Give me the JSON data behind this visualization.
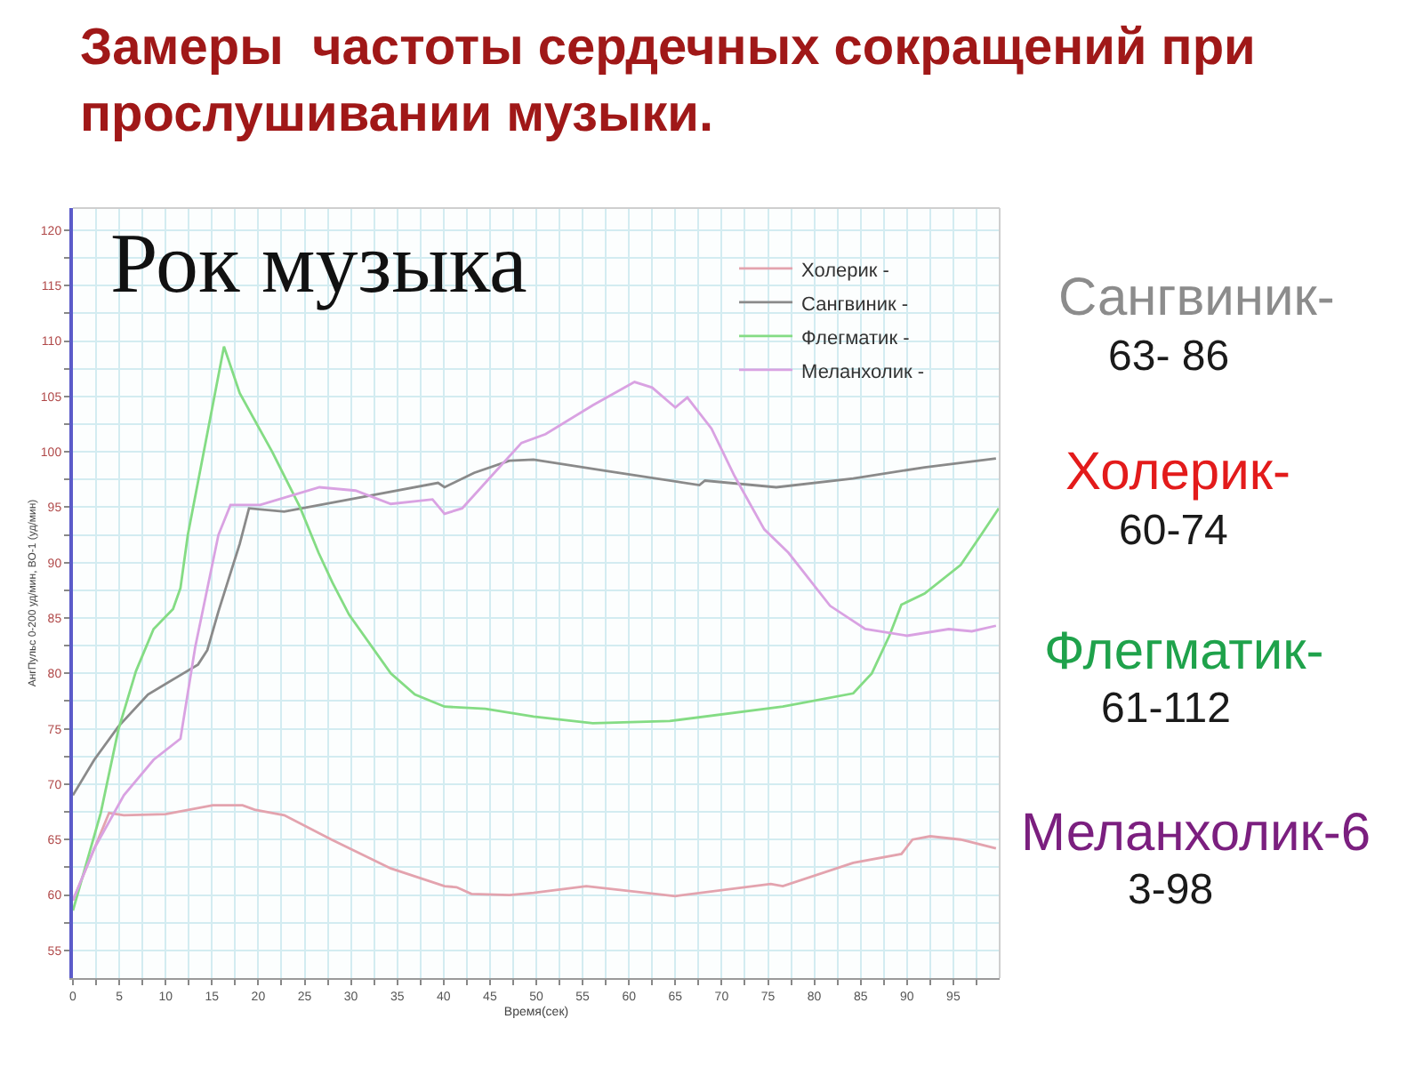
{
  "chart_data": {
    "type": "line",
    "title": "Замеры  частоты сердечных сокращений при прослушивании музыки.",
    "xlabel": "Время(сек)",
    "ylabel": "АнгПульс 0-200 уд/мин, ВО-1 (уд/мин)",
    "xlim": [
      0,
      100
    ],
    "ylim": [
      52.5,
      122
    ],
    "xticks": [
      0,
      {
        "value": 2.5,
        "label": null
      },
      5,
      {
        "value": 7.5,
        "label": null
      },
      10,
      {
        "value": 12.5,
        "label": null
      },
      15,
      {
        "value": 17.5,
        "label": null
      },
      20,
      {
        "value": 22.5,
        "label": null
      },
      25,
      {
        "value": 27.5,
        "label": null
      },
      30,
      {
        "value": 32.5,
        "label": null
      },
      35,
      {
        "value": 37.5,
        "label": null
      },
      40,
      {
        "value": 42.5,
        "label": null
      },
      45,
      {
        "value": 47.5,
        "label": null
      },
      50,
      {
        "value": 52.5,
        "label": null
      },
      55,
      {
        "value": 57.5,
        "label": null
      },
      60,
      {
        "value": 62.5,
        "label": null
      },
      65,
      {
        "value": 67.5,
        "label": null
      },
      70,
      {
        "value": 72.5,
        "label": null
      },
      75,
      {
        "value": 77.5,
        "label": null
      },
      80,
      {
        "value": 82.5,
        "label": null
      },
      85,
      {
        "value": 87.5,
        "label": null
      },
      90,
      {
        "value": 92.5,
        "label": null
      },
      95,
      {
        "value": 97.5,
        "label": null
      }
    ],
    "yticks": [
      55,
      {
        "value": 57.5,
        "label": null
      },
      60,
      {
        "value": 62.5,
        "label": null
      },
      65,
      {
        "value": 67.5,
        "label": null
      },
      70,
      {
        "value": 72.5,
        "label": null
      },
      75,
      {
        "value": 77.5,
        "label": null
      },
      80,
      {
        "value": 82.5,
        "label": null
      },
      85,
      {
        "value": 87.5,
        "label": null
      },
      90,
      {
        "value": 92.5,
        "label": null
      },
      95,
      {
        "value": 97.5,
        "label": null
      },
      100,
      {
        "value": 102.5,
        "label": null
      },
      105,
      {
        "value": 107.5,
        "label": null
      },
      110,
      {
        "value": 112.5,
        "label": null
      },
      115,
      {
        "value": 117.5,
        "label": null
      },
      120
    ],
    "grid": true,
    "legend": "top right",
    "series": [
      {
        "name": "Холерик -",
        "color": "#e3a3ae",
        "x": [
          0,
          3.9,
          5.5,
          10,
          15.1,
          18.3,
          19.6,
          22.8,
          27.9,
          34.3,
          40.1,
          41.4,
          43,
          47.1,
          49.7,
          55.4,
          65,
          75.3,
          76.6,
          84.2,
          89.4,
          90.6,
          92.5,
          95.8,
          99.6
        ],
        "values": [
          59.5,
          67.4,
          67.2,
          67.3,
          68.1,
          68.1,
          67.7,
          67.2,
          65.0,
          62.4,
          60.8,
          60.7,
          60.1,
          60.0,
          60.2,
          60.8,
          59.9,
          61.0,
          60.8,
          62.9,
          63.7,
          65.0,
          65.3,
          65.0,
          64.2
        ]
      },
      {
        "name": "Сангвиник -",
        "color": "#8a8a8a",
        "x": [
          0,
          2.3,
          4.9,
          8.1,
          11.3,
          13.5,
          14.5,
          15.7,
          18,
          19,
          22.8,
          31.8,
          39.4,
          40.1,
          43.3,
          47.1,
          49.7,
          57.4,
          67.6,
          68.2,
          75.9,
          84.2,
          91.9,
          99.6
        ],
        "values": [
          69.0,
          72.2,
          75.2,
          78.1,
          79.7,
          80.8,
          82.1,
          85.6,
          91.7,
          94.9,
          94.6,
          96.0,
          97.2,
          96.8,
          98.1,
          99.2,
          99.3,
          98.3,
          97.0,
          97.4,
          96.8,
          97.6,
          98.6,
          99.4
        ]
      },
      {
        "name": "Флегматик -",
        "color": "#84dc84",
        "x": [
          0,
          3.0,
          4.9,
          6.8,
          8.7,
          10.8,
          11.6,
          12.4,
          16.3,
          18.0,
          21.5,
          24.5,
          26.5,
          28,
          29.8,
          34.3,
          36.9,
          40.1,
          44.5,
          49.7,
          56.1,
          64.4,
          76.6,
          84.2,
          86.2,
          88.1,
          89.4,
          91.9,
          95.8,
          98.0,
          99.9
        ],
        "values": [
          58.6,
          67.4,
          74.9,
          80.2,
          84.0,
          85.8,
          87.7,
          92.5,
          109.5,
          105.3,
          100.0,
          95.0,
          90.9,
          88.2,
          85.3,
          80.0,
          78.1,
          77.0,
          76.8,
          76.1,
          75.5,
          75.7,
          77.0,
          78.2,
          80.0,
          83.4,
          86.2,
          87.2,
          89.8,
          92.5,
          94.9
        ]
      },
      {
        "name": "Меланхолик -",
        "color": "#d9a2e2",
        "x": [
          0,
          2.3,
          5.5,
          8.7,
          11.6,
          13.2,
          15.7,
          17,
          20.2,
          26.6,
          30.5,
          34.3,
          38.8,
          40.1,
          42,
          45.8,
          48.4,
          51,
          56.1,
          60.6,
          62.5,
          65,
          66.3,
          68.9,
          71.4,
          74.6,
          77.2,
          81.7,
          85.5,
          90,
          94.5,
          97,
          99.6
        ],
        "values": [
          59.5,
          64.2,
          69.0,
          72.2,
          74.1,
          82.4,
          92.5,
          95.2,
          95.2,
          96.8,
          96.5,
          95.3,
          95.7,
          94.4,
          94.9,
          98.4,
          100.8,
          101.6,
          104.2,
          106.3,
          105.8,
          104.0,
          104.9,
          102.1,
          97.8,
          93.0,
          90.9,
          86.1,
          84.0,
          83.4,
          84.0,
          83.8,
          84.3
        ]
      }
    ],
    "annotations": [
      "Рок музыка",
      "Сангвиник-",
      "63- 86",
      "Холерик-",
      "60-74",
      "Флегматик-",
      "61-112",
      "Меланхолик-6",
      "3-98"
    ]
  }
}
